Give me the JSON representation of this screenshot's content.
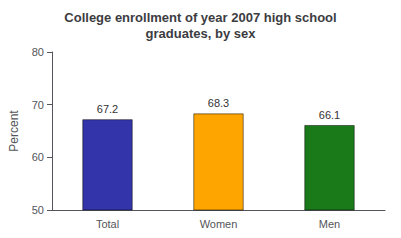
{
  "chart_data": {
    "type": "bar",
    "title": "College enrollment of year 2007 high school\ngraduates, by sex",
    "categories": [
      "Total",
      "Women",
      "Men"
    ],
    "values": [
      67.2,
      68.3,
      66.1
    ],
    "colors": [
      "#3333aa",
      "#ffa500",
      "#1a7a1a"
    ],
    "ylabel": "Percent",
    "ylim": [
      50,
      80
    ],
    "yticks": [
      50,
      60,
      70,
      80
    ],
    "grid": false,
    "data_labels": true
  }
}
